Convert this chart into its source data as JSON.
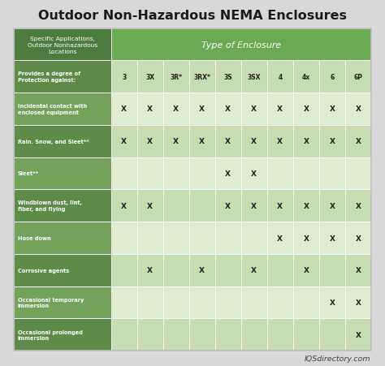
{
  "title": "Outdoor Non-Hazardous NEMA Enclosures",
  "header_left": "Specific Applications,\nOutdoor Nonhazardous\nLocations",
  "header_right": "Type of Enclosure",
  "col_labels": [
    "3",
    "3X",
    "3R*",
    "3RX*",
    "3S",
    "3SX",
    "4",
    "4x",
    "6",
    "6P"
  ],
  "row_labels": [
    "Provides a degree of\nProtection against:",
    "Incidental contact with\nenclosed equipment",
    "Rain. Snow, and Sleet**",
    "Sleet**",
    "Windblown dust, lint,\nfiber, and flying",
    "Hose down",
    "Corrosive agents",
    "Occasional temporary\nimmersion",
    "Occasional prolonged\nimmersion"
  ],
  "data": [
    [
      "3",
      "3X",
      "3R*",
      "3RX*",
      "3S",
      "3SX",
      "4",
      "4x",
      "6",
      "6P"
    ],
    [
      "X",
      "X",
      "X",
      "X",
      "X",
      "X",
      "X",
      "X",
      "X",
      "X"
    ],
    [
      "X",
      "X",
      "X",
      "X",
      "X",
      "X",
      "X",
      "X",
      "X",
      "X"
    ],
    [
      "",
      "",
      "",
      "",
      "X",
      "X",
      "",
      "",
      "",
      ""
    ],
    [
      "X",
      "X",
      "",
      "",
      "X",
      "X",
      "X",
      "X",
      "X",
      "X"
    ],
    [
      "",
      "",
      "",
      "",
      "",
      "",
      "X",
      "X",
      "X",
      "X"
    ],
    [
      "",
      "X",
      "",
      "X",
      "",
      "X",
      "",
      "X",
      "",
      "X"
    ],
    [
      "",
      "",
      "",
      "",
      "",
      "",
      "",
      "",
      "X",
      "X"
    ],
    [
      "",
      "",
      "",
      "",
      "",
      "",
      "",
      "",
      "",
      "X"
    ]
  ],
  "color_dark_green": "#4d7c3f",
  "color_medium_green": "#6aaa52",
  "color_row_dark_label": "#5c8c47",
  "color_row_light_label": "#73a35a",
  "color_cell_dark": "#c5ddb0",
  "color_cell_light": "#deecd0",
  "color_bg": "#d8d8d8",
  "footer_text": "IQSdirectory.com"
}
